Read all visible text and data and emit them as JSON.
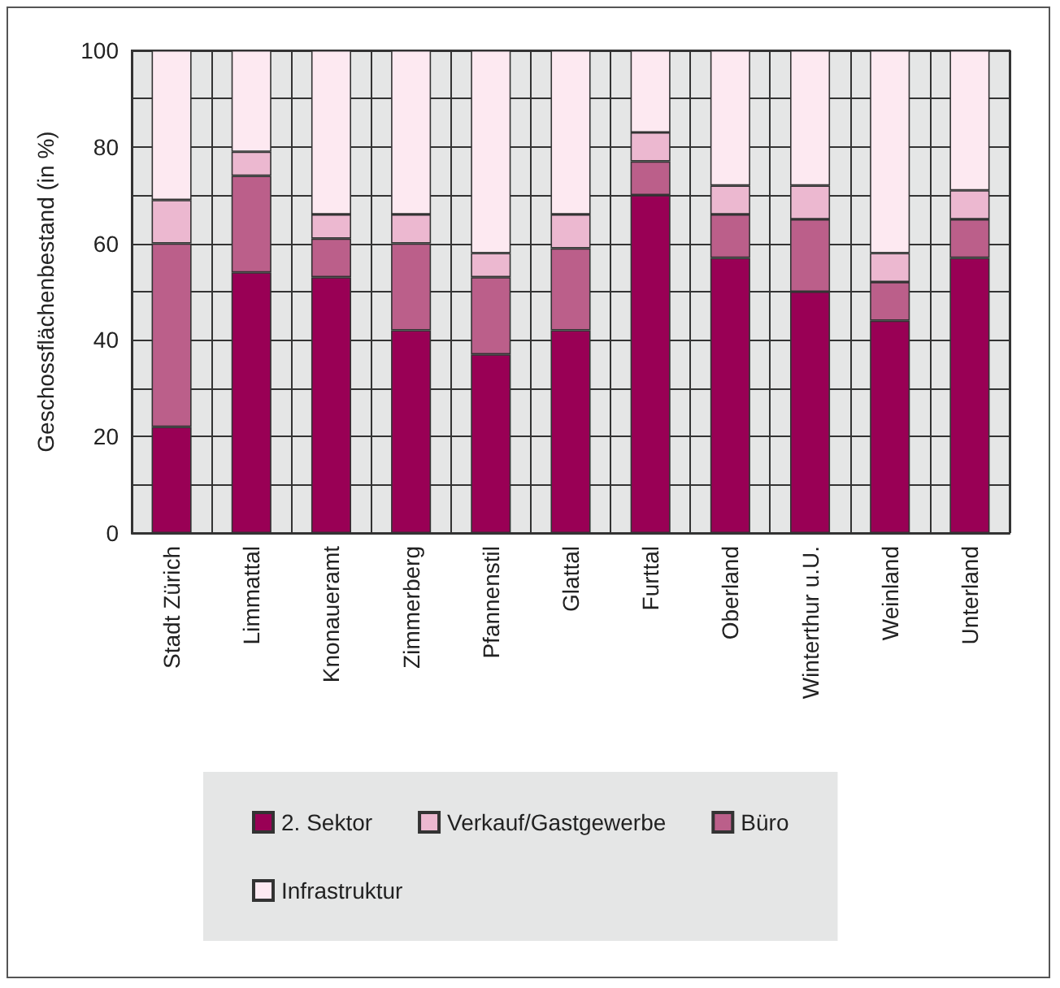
{
  "chart_data": {
    "type": "bar",
    "stacked": true,
    "ylabel": "Geschossflächenbestand (in %)",
    "categories": [
      "Stadt Zürich",
      "Limmattal",
      "Knonaueramt",
      "Zimmerberg",
      "Pfannenstil",
      "Glattal",
      "Furttal",
      "Oberland",
      "Winterthur u.U.",
      "Weinland",
      "Unterland"
    ],
    "series": [
      {
        "name": "2. Sektor",
        "color": "#990055",
        "values": [
          22,
          54,
          53,
          42,
          37,
          42,
          70,
          57,
          50,
          44,
          57
        ]
      },
      {
        "name": "Büro",
        "color": "#bb5f8a",
        "values": [
          38,
          20,
          8,
          18,
          16,
          17,
          7,
          9,
          15,
          8,
          8
        ]
      },
      {
        "name": "Verkauf/Gastgewerbe",
        "color": "#ecb8d0",
        "values": [
          9,
          5,
          5,
          6,
          5,
          7,
          6,
          6,
          7,
          6,
          6
        ]
      },
      {
        "name": "Infrastruktur",
        "color": "#fde9f1",
        "values": [
          31,
          21,
          34,
          34,
          42,
          34,
          17,
          28,
          28,
          42,
          29
        ]
      }
    ],
    "ylim": [
      0,
      100
    ],
    "yticks": [
      0,
      20,
      40,
      60,
      80,
      100
    ],
    "grid": true,
    "legend": "bottom"
  }
}
